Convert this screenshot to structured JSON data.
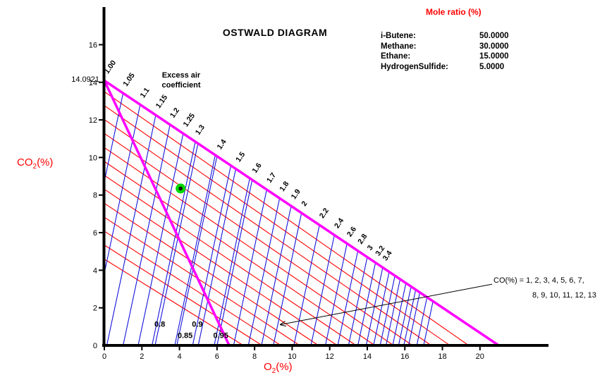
{
  "title": "OSTWALD DIAGRAM",
  "legend": {
    "title": "Mole ratio (%)",
    "items": [
      {
        "label": "i-Butene:",
        "value": "50.0000"
      },
      {
        "label": "Methane:",
        "value": "30.0000"
      },
      {
        "label": "Ethane:",
        "value": "15.0000"
      },
      {
        "label": "HydrogenSulfide:",
        "value": "5.0000"
      }
    ]
  },
  "axis_titles": {
    "x_main": "O",
    "x_sub": "2",
    "x_suffix": "(%)",
    "y_main": "CO",
    "y_sub": "2",
    "y_suffix": "(%)"
  },
  "annotations": {
    "excess_air_line1": "Excess air",
    "excess_air_line2": "coefficient",
    "co_line1": "CO(%) = 1, 2, 3, 4, 5, 6, 7,",
    "co_line2": "8, 9, 10, 11, 12, 13",
    "co2_max_label": "14.0921"
  },
  "chart_data": {
    "type": "line",
    "title": "OSTWALD DIAGRAM",
    "xlabel": "O2(%)",
    "ylabel": "CO2(%)",
    "xlim": [
      0,
      23.6
    ],
    "ylim": [
      0,
      18
    ],
    "x_ticks": [
      0,
      2,
      4,
      6,
      8,
      10,
      12,
      14,
      16,
      18,
      20
    ],
    "y_ticks": [
      0,
      2,
      4,
      6,
      8,
      10,
      12,
      14,
      16
    ],
    "co2_max": 14.0921,
    "o2_max": 21,
    "boundary": {
      "color": "#ff00ff",
      "co_zero_line": {
        "from": [
          0,
          14.0921
        ],
        "to": [
          21,
          0
        ]
      },
      "alpha_one_line": {
        "from": [
          0,
          14.0921
        ],
        "to": [
          6.65,
          0
        ]
      }
    },
    "excess_air_lines": {
      "color": "#1515dd",
      "slope": 4.7,
      "labeled": [
        {
          "label": "1.00",
          "alpha": 1.0
        },
        {
          "label": "1.05",
          "alpha": 1.05
        },
        {
          "label": "1.1",
          "alpha": 1.1
        },
        {
          "label": "1.15",
          "alpha": 1.15
        },
        {
          "label": "1.2",
          "alpha": 1.2
        },
        {
          "label": "1.25",
          "alpha": 1.25
        },
        {
          "label": "1.3",
          "alpha": 1.3
        },
        {
          "label": "1.4",
          "alpha": 1.4
        },
        {
          "label": "1.5",
          "alpha": 1.5
        },
        {
          "label": "1.6",
          "alpha": 1.6
        },
        {
          "label": "1.7",
          "alpha": 1.7
        },
        {
          "label": "1.8",
          "alpha": 1.8
        },
        {
          "label": "1.9",
          "alpha": 1.9
        },
        {
          "label": "2",
          "alpha": 2.0
        },
        {
          "label": "2.2",
          "alpha": 2.2
        },
        {
          "label": "2.4",
          "alpha": 2.4
        },
        {
          "label": "2.6",
          "alpha": 2.6
        },
        {
          "label": "2.8",
          "alpha": 2.8
        },
        {
          "label": "3",
          "alpha": 3.0
        },
        {
          "label": "3.2",
          "alpha": 3.2
        },
        {
          "label": "3.4",
          "alpha": 3.4
        }
      ],
      "sub_unity": [
        {
          "label": "0.8",
          "alpha": 0.8,
          "x_intercept": 2.7,
          "label_pos": [
            2.95,
            1.15
          ]
        },
        {
          "label": "0.85",
          "alpha": 0.85,
          "x_intercept": 3.75,
          "label_pos": [
            4.3,
            0.55
          ]
        },
        {
          "label": "0.9",
          "alpha": 0.9,
          "x_intercept": 4.7,
          "label_pos": [
            4.95,
            1.15
          ]
        },
        {
          "label": "0.95",
          "alpha": 0.95,
          "x_intercept": 5.85,
          "label_pos": [
            6.2,
            0.55
          ]
        }
      ],
      "unlabeled_alphas": [
        3.6,
        3.8,
        4.0,
        4.25,
        4.5,
        4.75,
        5.0,
        5.5,
        6.0
      ]
    },
    "co_lines": {
      "color": "#ff0000",
      "values": [
        1,
        2,
        3,
        4,
        5,
        6,
        7,
        8,
        9,
        10,
        11,
        12,
        13
      ],
      "y_intercepts": [
        13.5,
        12.76,
        12.02,
        11.28,
        10.53,
        9.79,
        9.05,
        8.31,
        7.56,
        6.82,
        6.08,
        5.34,
        4.59
      ],
      "x_intercepts": [
        19.4,
        18.4,
        17.4,
        16.4,
        15.4,
        14.4,
        13.4,
        12.4,
        11.4,
        10.4,
        9.4,
        8.4,
        7.4
      ]
    },
    "operating_point": {
      "x": 4.06,
      "y": 8.35,
      "color": "#00d800"
    },
    "arrow": {
      "from": [
        20.65,
        3.26
      ],
      "to": [
        9.35,
        1.1
      ]
    }
  }
}
